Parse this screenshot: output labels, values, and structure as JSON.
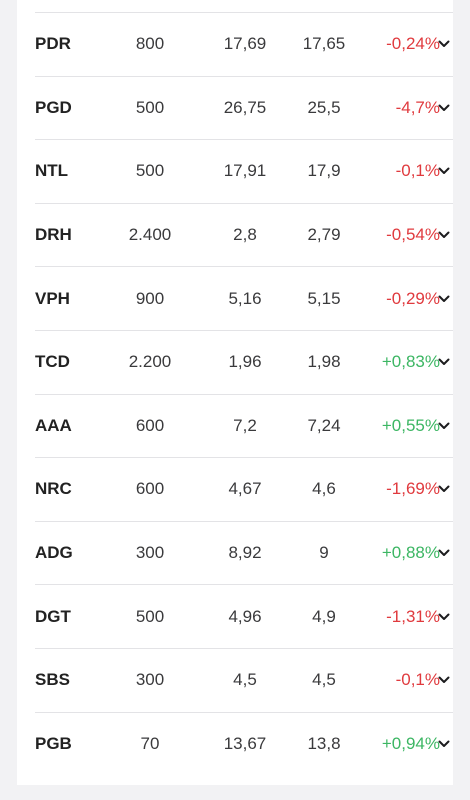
{
  "rows": [
    {
      "symbol": "PDR",
      "qty": "800",
      "price_a": "17,69",
      "price_b": "17,65",
      "change": "-0,24%",
      "dir": "neg"
    },
    {
      "symbol": "PGD",
      "qty": "500",
      "price_a": "26,75",
      "price_b": "25,5",
      "change": "-4,7%",
      "dir": "neg"
    },
    {
      "symbol": "NTL",
      "qty": "500",
      "price_a": "17,91",
      "price_b": "17,9",
      "change": "-0,1%",
      "dir": "neg"
    },
    {
      "symbol": "DRH",
      "qty": "2.400",
      "price_a": "2,8",
      "price_b": "2,79",
      "change": "-0,54%",
      "dir": "neg"
    },
    {
      "symbol": "VPH",
      "qty": "900",
      "price_a": "5,16",
      "price_b": "5,15",
      "change": "-0,29%",
      "dir": "neg"
    },
    {
      "symbol": "TCD",
      "qty": "2.200",
      "price_a": "1,96",
      "price_b": "1,98",
      "change": "+0,83%",
      "dir": "pos"
    },
    {
      "symbol": "AAA",
      "qty": "600",
      "price_a": "7,2",
      "price_b": "7,24",
      "change": "+0,55%",
      "dir": "pos"
    },
    {
      "symbol": "NRC",
      "qty": "600",
      "price_a": "4,67",
      "price_b": "4,6",
      "change": "-1,69%",
      "dir": "neg"
    },
    {
      "symbol": "ADG",
      "qty": "300",
      "price_a": "8,92",
      "price_b": "9",
      "change": "+0,88%",
      "dir": "pos"
    },
    {
      "symbol": "DGT",
      "qty": "500",
      "price_a": "4,96",
      "price_b": "4,9",
      "change": "-1,31%",
      "dir": "neg"
    },
    {
      "symbol": "SBS",
      "qty": "300",
      "price_a": "4,5",
      "price_b": "4,5",
      "change": "-0,1%",
      "dir": "neg"
    },
    {
      "symbol": "PGB",
      "qty": "70",
      "price_a": "13,67",
      "price_b": "13,8",
      "change": "+0,94%",
      "dir": "pos"
    }
  ],
  "row_icon": "chevron-down-icon",
  "colors": {
    "negative": "#e03a3e",
    "positive": "#3cb663"
  }
}
